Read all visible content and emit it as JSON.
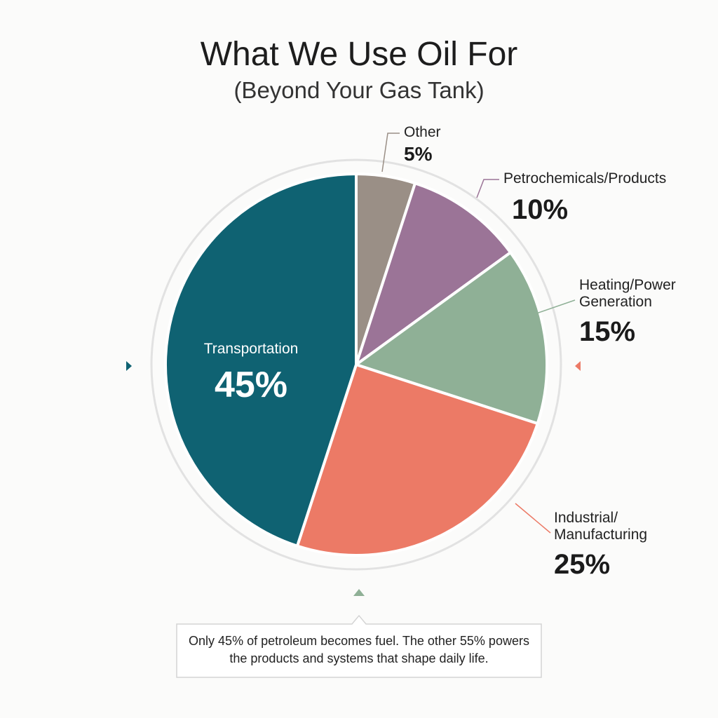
{
  "chart_data": {
    "type": "pie",
    "title": "What We Use Oil For",
    "subtitle": "(Beyond Your Gas Tank)",
    "categories": [
      "Other",
      "Petrochemicals/Products",
      "Heating/Power Generation",
      "Industrial/ Manufacturing",
      "Transportation"
    ],
    "values": [
      5,
      10,
      15,
      25,
      45
    ],
    "value_labels": [
      "5%",
      "10%",
      "15%",
      "25%",
      "45%"
    ],
    "colors": [
      "#9a8f86",
      "#9b7497",
      "#8fb096",
      "#ec7a66",
      "#0f6272"
    ],
    "note": "Only 45% of petroleum becomes fuel. The other 55% powers the products and systems that shape daily life."
  }
}
